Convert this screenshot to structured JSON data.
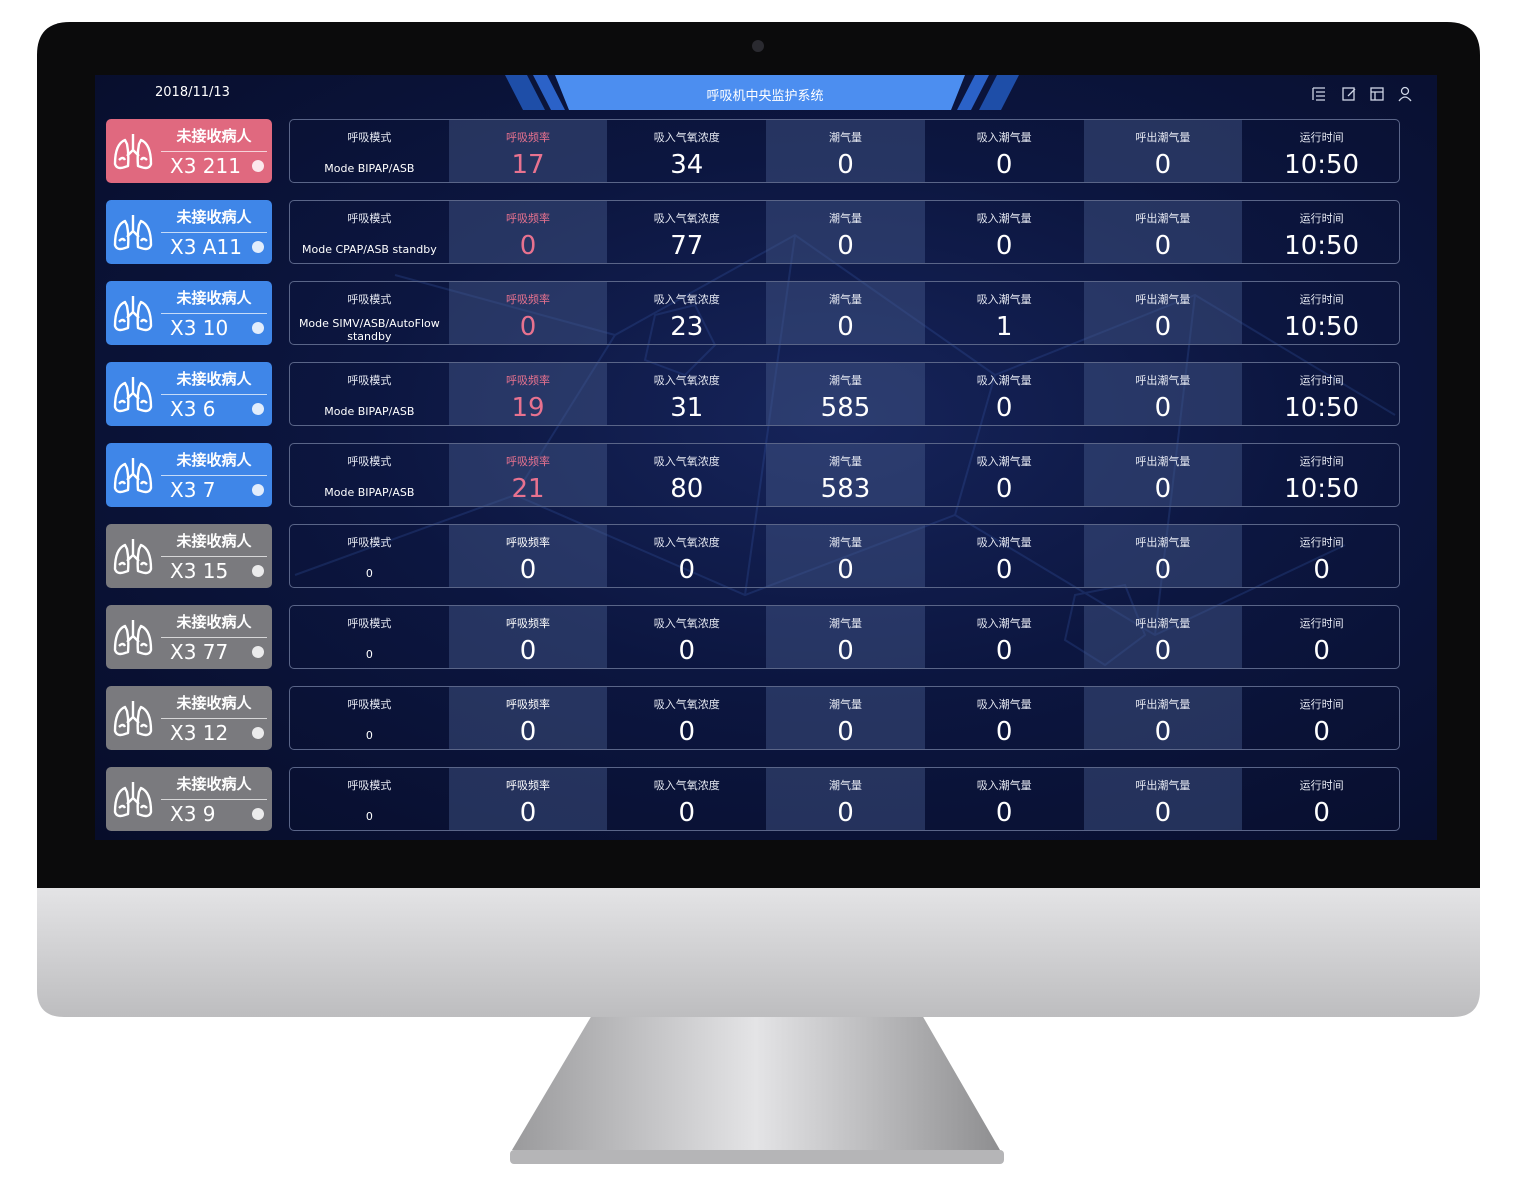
{
  "header": {
    "date": "2018/11/13",
    "title": "呼吸机中央监护系统"
  },
  "columns": [
    "呼吸模式",
    "呼吸频率",
    "吸入气氧浓度",
    "潮气量",
    "吸入潮气量",
    "呼出潮气量",
    "运行时间"
  ],
  "rows": [
    {
      "status": "未接收病人",
      "device": "X3 211",
      "color": "#e0697f",
      "rate_color": "#e8728f",
      "mode": "Mode BIPAP/ASB",
      "values": [
        "17",
        "34",
        "0",
        "0",
        "0",
        "10:50"
      ]
    },
    {
      "status": "未接收病人",
      "device": "X3 A11",
      "color": "#3f86e8",
      "rate_color": "#e8728f",
      "mode": "Mode CPAP/ASB standby",
      "values": [
        "0",
        "77",
        "0",
        "0",
        "0",
        "10:50"
      ]
    },
    {
      "status": "未接收病人",
      "device": "X3 10",
      "color": "#3f86e8",
      "rate_color": "#e8728f",
      "mode": "Mode SIMV/ASB/AutoFlow standby",
      "values": [
        "0",
        "23",
        "0",
        "1",
        "0",
        "10:50"
      ]
    },
    {
      "status": "未接收病人",
      "device": "X3 6",
      "color": "#3f86e8",
      "rate_color": "#e8728f",
      "mode": "Mode BIPAP/ASB",
      "values": [
        "19",
        "31",
        "585",
        "0",
        "0",
        "10:50"
      ]
    },
    {
      "status": "未接收病人",
      "device": "X3 7",
      "color": "#3f86e8",
      "rate_color": "#e8728f",
      "mode": "Mode BIPAP/ASB",
      "values": [
        "21",
        "80",
        "583",
        "0",
        "0",
        "10:50"
      ]
    },
    {
      "status": "未接收病人",
      "device": "X3 15",
      "color": "#7a7a7e",
      "rate_color": "#ffffff",
      "mode": "0",
      "values": [
        "0",
        "0",
        "0",
        "0",
        "0",
        "0"
      ]
    },
    {
      "status": "未接收病人",
      "device": "X3 77",
      "color": "#7a7a7e",
      "rate_color": "#ffffff",
      "mode": "0",
      "values": [
        "0",
        "0",
        "0",
        "0",
        "0",
        "0"
      ]
    },
    {
      "status": "未接收病人",
      "device": "X3 12",
      "color": "#7a7a7e",
      "rate_color": "#ffffff",
      "mode": "0",
      "values": [
        "0",
        "0",
        "0",
        "0",
        "0",
        "0"
      ]
    },
    {
      "status": "未接收病人",
      "device": "X3 9",
      "color": "#7a7a7e",
      "rate_color": "#ffffff",
      "mode": "0",
      "values": [
        "0",
        "0",
        "0",
        "0",
        "0",
        "0"
      ]
    }
  ]
}
